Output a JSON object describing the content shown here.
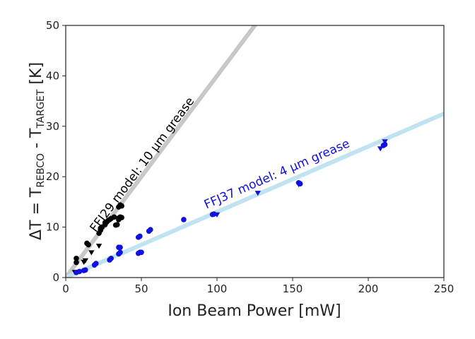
{
  "chart_data": {
    "type": "scatter",
    "xlabel": "Ion Beam Power [mW]",
    "ylabel": {
      "prefix": "ΔT = T",
      "sub1": "REBCO",
      "mid": " - T",
      "sub2": "TARGET",
      "suffix": " [K]"
    },
    "xlim": [
      0,
      250
    ],
    "ylim": [
      0,
      50
    ],
    "xticks": [
      "0",
      "50",
      "100",
      "150",
      "200",
      "250"
    ],
    "yticks": [
      "0",
      "10",
      "20",
      "30",
      "40",
      "50"
    ],
    "grid": false,
    "model_lines": [
      {
        "annotation": "FFJ29 model: 10 μm grease",
        "slope": 0.4,
        "color": "#c8c8c8"
      },
      {
        "annotation": "FFJ37 model: 4 μm grease",
        "slope": 0.13,
        "color": "#bfe3f0"
      }
    ],
    "series": [
      {
        "color": "#000000",
        "marker": "circle",
        "points": [
          [
            7,
            3
          ],
          [
            7,
            3.8
          ],
          [
            14,
            6.8
          ],
          [
            15,
            6.5
          ],
          [
            22,
            8.8
          ],
          [
            23,
            9.4
          ],
          [
            23,
            9.8
          ],
          [
            24,
            10
          ],
          [
            26,
            10.5
          ],
          [
            26,
            10.9
          ],
          [
            27,
            11
          ],
          [
            28,
            11.3
          ],
          [
            29,
            11.5
          ],
          [
            30,
            11.7
          ],
          [
            32,
            12
          ],
          [
            33,
            10.4
          ],
          [
            34,
            10.5
          ],
          [
            35,
            11.5
          ],
          [
            35,
            11.8
          ],
          [
            36,
            12
          ],
          [
            37,
            11.9
          ],
          [
            35,
            14
          ],
          [
            36,
            14.4
          ],
          [
            37,
            14.2
          ]
        ]
      },
      {
        "color": "#000000",
        "marker": "triangle",
        "points": [
          [
            6,
            1.1
          ],
          [
            12,
            3.1
          ],
          [
            13,
            3.4
          ],
          [
            17,
            5
          ],
          [
            22,
            6.3
          ]
        ]
      },
      {
        "color": "#1010e0",
        "marker": "circle",
        "points": [
          [
            7,
            1
          ],
          [
            9,
            1.2
          ],
          [
            12,
            1.4
          ],
          [
            13,
            1.5
          ],
          [
            19,
            2.5
          ],
          [
            20,
            2.8
          ],
          [
            29,
            3.5
          ],
          [
            30,
            3.8
          ],
          [
            35,
            4.7
          ],
          [
            36,
            5
          ],
          [
            35,
            6
          ],
          [
            36,
            6
          ],
          [
            48,
            8
          ],
          [
            49,
            8.2
          ],
          [
            48,
            4.8
          ],
          [
            49,
            5
          ],
          [
            50,
            5
          ],
          [
            55,
            9.2
          ],
          [
            56,
            9.5
          ],
          [
            78,
            11.5
          ],
          [
            97,
            12.5
          ],
          [
            98,
            12.6
          ],
          [
            154,
            18.8
          ],
          [
            155,
            18.6
          ],
          [
            210,
            26.2
          ],
          [
            211,
            26.4
          ]
        ]
      },
      {
        "color": "#1010e0",
        "marker": "triangle",
        "points": [
          [
            100,
            12.5
          ],
          [
            127,
            16.8
          ],
          [
            154,
            18.5
          ],
          [
            208,
            25.6
          ],
          [
            211,
            27
          ]
        ]
      }
    ]
  }
}
